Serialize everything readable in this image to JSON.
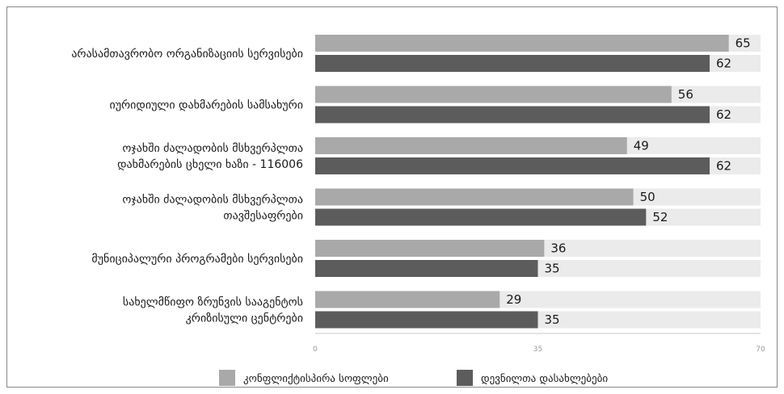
{
  "chart_data": {
    "type": "bar",
    "orientation": "horizontal",
    "categories": [
      [
        "არასამთავრობო ორგანიზაციის სერვისები"
      ],
      [
        "იურიდიული დახმარების სამსახური"
      ],
      [
        "ოჯახში ძალადობის მსხვერპლთა",
        "დახმარების ცხელი ხაზი - 116006"
      ],
      [
        "ოჯახში ძალადობის მსხვერპლთა",
        "თავშესაფრები"
      ],
      [
        "მუნიციპალური პროგრამები სერვისები"
      ],
      [
        "სახელმწიფო ზრუნვის სააგენტოს",
        "კრიზისული ცენტრები"
      ]
    ],
    "series": [
      {
        "name": "კონფლიქტისპირა სოფლები",
        "color": "#a9a9a9",
        "values": [
          65,
          56,
          49,
          50,
          36,
          29
        ]
      },
      {
        "name": "დევნილთა დასახლებები",
        "color": "#5c5c5c",
        "values": [
          62,
          62,
          62,
          52,
          35,
          35
        ]
      }
    ],
    "xlim": [
      0,
      70
    ],
    "xticks": [
      "0",
      "35",
      "70"
    ],
    "track_color": "#ebebeb",
    "legend_position": "bottom",
    "title": "",
    "xlabel": "",
    "ylabel": ""
  }
}
